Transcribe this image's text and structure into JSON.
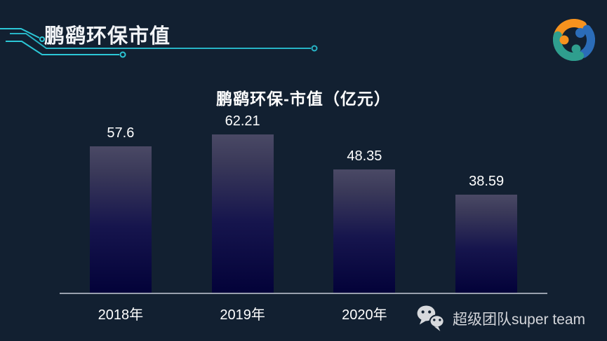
{
  "page": {
    "background_color": "#122031",
    "accent_color": "#2cc7d6"
  },
  "header": {
    "title": "鹏鹞环保市值"
  },
  "logo": {
    "name": "team-swirl-logo",
    "orange": "#f6921e",
    "blue": "#2b6cb8",
    "teal": "#2f9e8e"
  },
  "chart_data": {
    "type": "bar",
    "title": "鹏鹞环保-市值（亿元）",
    "categories": [
      "2018年",
      "2019年",
      "2020年",
      ""
    ],
    "values": [
      57.6,
      62.21,
      48.35,
      38.59
    ],
    "value_labels": [
      "57.6",
      "62.21",
      "48.35",
      "38.59"
    ],
    "xlabel": "",
    "ylabel": "",
    "ylim": [
      0,
      62.21
    ],
    "grid": false,
    "legend": false,
    "bar_color_top": "#4a4965",
    "bar_color_bottom": "#030239",
    "axis_line_color": "#99a0ad",
    "label_color": "#ffffff"
  },
  "watermark": {
    "icon": "wechat-icon",
    "text": "超级团队super team",
    "color": "#d3d5da"
  }
}
